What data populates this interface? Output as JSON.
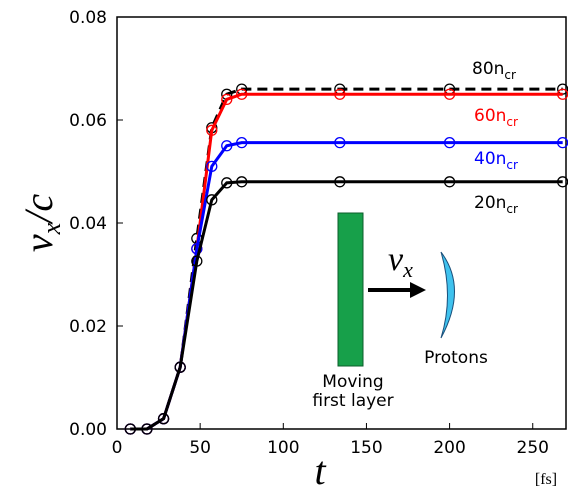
{
  "chart_data": {
    "type": "line",
    "ylabel": {
      "main": "v",
      "sub": "x",
      "rest": "/c"
    },
    "xlabel": "t",
    "xunit": "[fs]",
    "x": [
      8,
      18,
      28,
      38,
      48,
      57,
      66,
      75,
      134,
      200,
      268
    ],
    "series": [
      {
        "name": "80n",
        "subscript": "cr",
        "color": "#000000",
        "dashed": true,
        "values": [
          0,
          0,
          0.002,
          0.012,
          0.037,
          0.0585,
          0.065,
          0.066,
          0.066,
          0.066,
          0.066
        ]
      },
      {
        "name": "60n",
        "subscript": "cr",
        "color": "#ff0000",
        "dashed": false,
        "values": [
          0,
          0,
          0.002,
          0.012,
          0.035,
          0.058,
          0.064,
          0.065,
          0.065,
          0.065,
          0.065
        ]
      },
      {
        "name": "40n",
        "subscript": "cr",
        "color": "#0000ff",
        "dashed": false,
        "values": [
          0,
          0,
          0.002,
          0.012,
          0.035,
          0.051,
          0.055,
          0.0556,
          0.0556,
          0.0556,
          0.0556
        ]
      },
      {
        "name": "20n",
        "subscript": "cr",
        "color": "#000000",
        "dashed": false,
        "values": [
          0,
          0,
          0.002,
          0.012,
          0.0326,
          0.0445,
          0.0478,
          0.048,
          0.048,
          0.048,
          0.048
        ]
      }
    ],
    "xlim": [
      0,
      270
    ],
    "xticks": [
      0,
      50,
      100,
      150,
      200,
      250
    ],
    "ylim": [
      0,
      0.08
    ],
    "yticks": [
      {
        "value": 0,
        "label": "0.00"
      },
      {
        "value": 0.02,
        "label": "0.02"
      },
      {
        "value": 0.04,
        "label": "0.04"
      },
      {
        "value": 0.06,
        "label": "0.06"
      },
      {
        "value": 0.08,
        "label": "0.08"
      }
    ],
    "annotations": {
      "velocity": {
        "main": "v",
        "sub": "x"
      },
      "protons": "Protons",
      "layer": [
        "Moving",
        "first layer"
      ]
    }
  }
}
